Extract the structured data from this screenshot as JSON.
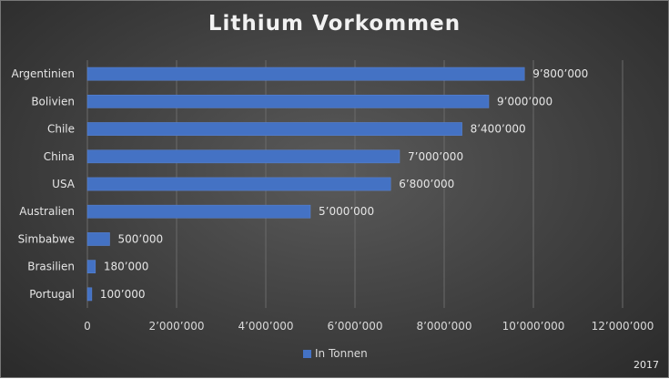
{
  "chart_data": {
    "type": "bar",
    "orientation": "horizontal",
    "title": "Lithium Vorkommen",
    "categories": [
      "Argentinien",
      "Bolivien",
      "Chile",
      "China",
      "USA",
      "Australien",
      "Simbabwe",
      "Brasilien",
      "Portugal"
    ],
    "series": [
      {
        "name": "In Tonnen",
        "values": [
          9800000,
          9000000,
          8400000,
          7000000,
          6800000,
          5000000,
          500000,
          180000,
          100000
        ],
        "labels": [
          "9’800’000",
          "9’000’000",
          "8’400’000",
          "7’000’000",
          "6’800’000",
          "5’000’000",
          "500’000",
          "180’000",
          "100’000"
        ]
      }
    ],
    "xlim": [
      0,
      12000000
    ],
    "x_ticks": [
      0,
      2000000,
      4000000,
      6000000,
      8000000,
      10000000,
      12000000
    ],
    "x_tick_labels": [
      "0",
      "2’000’000",
      "4’000’000",
      "6’000’000",
      "8’000’000",
      "10’000’000",
      "12’000’000"
    ],
    "grid": true,
    "legend_position": "bottom",
    "bar_color": "#4472c4",
    "footnote": "2017"
  }
}
